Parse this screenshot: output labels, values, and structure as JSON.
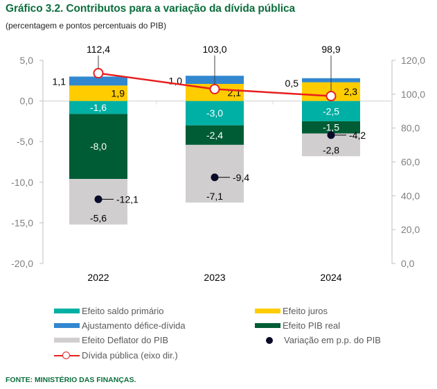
{
  "header": {
    "title": "Gráfico 3.2. Contributos para a variação da dívida pública",
    "subtitle": "(percentagem e pontos percentuais do PIB)"
  },
  "source": "FONTE: MINISTÉRIO DAS FINANÇAS.",
  "chart_data": {
    "type": "bar",
    "stacked": true,
    "title": "Gráfico 3.2. Contributos para a variação da dívida pública",
    "subtitle": "(percentagem e pontos percentuais do PIB)",
    "categories": [
      "2022",
      "2023",
      "2024"
    ],
    "left_axis": {
      "ylim": [
        -20,
        5
      ],
      "ticks": [
        5,
        0,
        -5,
        -10,
        -15,
        -20
      ],
      "tick_labels": [
        "5,0",
        "0,0",
        "-5,0",
        "-10,0",
        "-15,0",
        "-20,0"
      ]
    },
    "right_axis": {
      "ylim": [
        0,
        120
      ],
      "ticks": [
        120,
        100,
        80,
        60,
        40,
        20,
        0
      ],
      "tick_labels": [
        "120,0",
        "100,0",
        "80,0",
        "60,0",
        "40,0",
        "20,0",
        "0,0"
      ]
    },
    "series": [
      {
        "name": "Efeito saldo primário",
        "kind": "bar",
        "color": "#00b0a4",
        "values": [
          -1.6,
          -3.0,
          -2.5
        ],
        "labels": [
          "-1,6",
          "-3,0",
          "-2,5"
        ],
        "label_color": "#ffffff"
      },
      {
        "name": "Efeito juros",
        "kind": "bar",
        "color": "#ffcc00",
        "values": [
          1.9,
          2.1,
          2.3
        ],
        "labels": [
          "1,9",
          "2,1",
          "2,3"
        ],
        "label_color": "#000000"
      },
      {
        "name": "Ajustamento défice-dívida",
        "kind": "bar",
        "color": "#3287cf",
        "values": [
          1.1,
          1.0,
          0.5
        ],
        "labels": [
          "1,1",
          "1,0",
          "0,5"
        ],
        "label_color": "#000000"
      },
      {
        "name": "Efeito PIB real",
        "kind": "bar",
        "color": "#005c35",
        "values": [
          -8.0,
          -2.4,
          -1.5
        ],
        "labels": [
          "-8,0",
          "-2,4",
          "-1,5"
        ],
        "label_color": "#ffffff"
      },
      {
        "name": "Efeito Deflator do PIB",
        "kind": "bar",
        "color": "#d0cece",
        "values": [
          -5.6,
          -7.1,
          -2.8
        ],
        "labels": [
          "-5,6",
          "-7,1",
          "-2,8"
        ],
        "label_color": "#000000"
      },
      {
        "name": "Variação em p.p. do PIB",
        "kind": "scatter",
        "color": "#0a0a2a",
        "values": [
          -12.1,
          -9.4,
          -4.2
        ],
        "labels": [
          "-12,1",
          "-9,4",
          "-4,2"
        ]
      },
      {
        "name": "Dívida pública (eixo dir.)",
        "kind": "line",
        "axis": "right",
        "color": "#e81e1e",
        "values": [
          112.4,
          103.0,
          98.9
        ],
        "labels": [
          "112,4",
          "103,0",
          "98,9"
        ]
      }
    ],
    "legend": {
      "placement": "bottom",
      "entries": [
        {
          "label": "Efeito saldo primário",
          "type": "swatch",
          "color": "#00b0a4"
        },
        {
          "label": "Efeito juros",
          "type": "swatch",
          "color": "#ffcc00"
        },
        {
          "label": "Ajustamento défice-dívida",
          "type": "swatch",
          "color": "#3287cf"
        },
        {
          "label": "Efeito PIB real",
          "type": "swatch",
          "color": "#005c35"
        },
        {
          "label": "Efeito Deflator do PIB",
          "type": "swatch",
          "color": "#d0cece"
        },
        {
          "label": "Variação em p.p. do PIB",
          "type": "dot",
          "color": "#0a0a2a"
        },
        {
          "label": "Dívida pública (eixo dir.)",
          "type": "line-marker",
          "color": "#e81e1e"
        }
      ]
    },
    "grid": false
  }
}
